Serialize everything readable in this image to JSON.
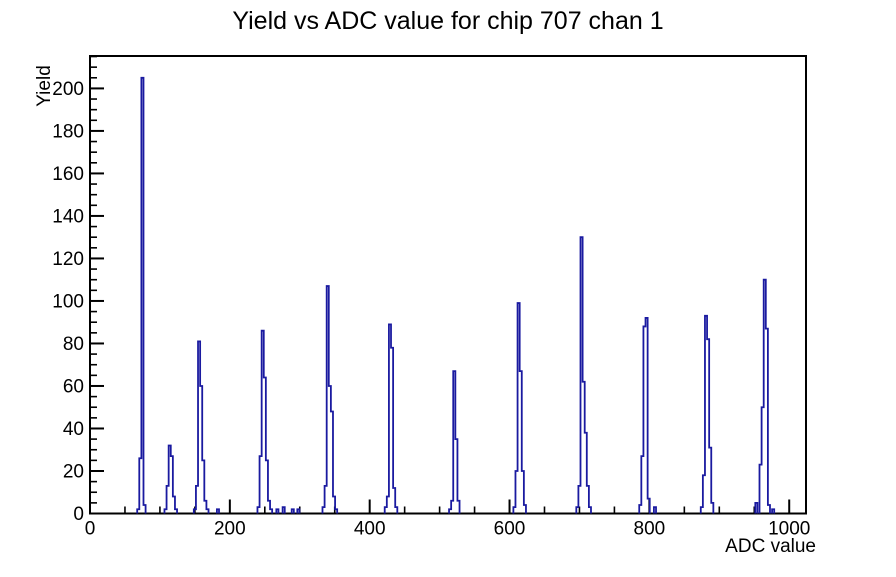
{
  "window": {
    "title": "Yield vs ADC value for chip 707 chan 1"
  },
  "chart_data": {
    "type": "bar",
    "style": "root-histogram-outline",
    "title": "Yield vs ADC value for chip 707 chan 1",
    "xlabel": "ADC value",
    "ylabel": "Yield",
    "xlim": [
      0,
      1024
    ],
    "ylim": [
      0,
      215.25
    ],
    "grid": false,
    "legend": "none",
    "x_major_ticks": [
      0,
      200,
      400,
      600,
      800,
      1000
    ],
    "x_minor_step": 50,
    "y_major_ticks": [
      0,
      20,
      40,
      60,
      80,
      100,
      120,
      140,
      160,
      180,
      200
    ],
    "y_minor_step": 5,
    "line_color": "#1a1aa0",
    "axis_color": "#000000",
    "background_color": "#ffffff",
    "bin_width": 3,
    "bins": [
      [
        69,
        2
      ],
      [
        72,
        26
      ],
      [
        75,
        205
      ],
      [
        78,
        4
      ],
      [
        108,
        2
      ],
      [
        111,
        13
      ],
      [
        114,
        32
      ],
      [
        117,
        27
      ],
      [
        120,
        8
      ],
      [
        123,
        2
      ],
      [
        150,
        2
      ],
      [
        153,
        13
      ],
      [
        156,
        81
      ],
      [
        159,
        60
      ],
      [
        162,
        25
      ],
      [
        165,
        6
      ],
      [
        168,
        2
      ],
      [
        183,
        2
      ],
      [
        241,
        3
      ],
      [
        244,
        27
      ],
      [
        247,
        86
      ],
      [
        250,
        64
      ],
      [
        253,
        25
      ],
      [
        256,
        6
      ],
      [
        259,
        2
      ],
      [
        268,
        2
      ],
      [
        277,
        3
      ],
      [
        290,
        2
      ],
      [
        298,
        2
      ],
      [
        334,
        3
      ],
      [
        337,
        13
      ],
      [
        340,
        107
      ],
      [
        343,
        60
      ],
      [
        346,
        48
      ],
      [
        349,
        8
      ],
      [
        352,
        2
      ],
      [
        423,
        3
      ],
      [
        426,
        8
      ],
      [
        429,
        89
      ],
      [
        432,
        78
      ],
      [
        435,
        12
      ],
      [
        438,
        3
      ],
      [
        515,
        2
      ],
      [
        518,
        6
      ],
      [
        521,
        67
      ],
      [
        524,
        35
      ],
      [
        527,
        6
      ],
      [
        607,
        3
      ],
      [
        610,
        20
      ],
      [
        613,
        99
      ],
      [
        616,
        67
      ],
      [
        619,
        20
      ],
      [
        622,
        4
      ],
      [
        697,
        3
      ],
      [
        700,
        13
      ],
      [
        703,
        130
      ],
      [
        706,
        62
      ],
      [
        709,
        38
      ],
      [
        712,
        13
      ],
      [
        715,
        3
      ],
      [
        787,
        4
      ],
      [
        790,
        27
      ],
      [
        793,
        88
      ],
      [
        796,
        92
      ],
      [
        799,
        7
      ],
      [
        808,
        3
      ],
      [
        875,
        3
      ],
      [
        878,
        18
      ],
      [
        881,
        93
      ],
      [
        884,
        82
      ],
      [
        887,
        31
      ],
      [
        890,
        5
      ],
      [
        953,
        5
      ],
      [
        959,
        23
      ],
      [
        962,
        50
      ],
      [
        965,
        110
      ],
      [
        968,
        87
      ],
      [
        971,
        4
      ],
      [
        977,
        2
      ]
    ]
  }
}
